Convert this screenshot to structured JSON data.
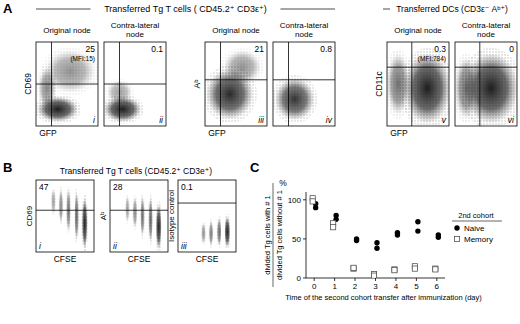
{
  "panel_a": {
    "label": "A",
    "header_tg": "Transferred Tg T cells ( CD45.2⁺ CD3ε⁺)",
    "header_dc": "Transferred DCs (CD3ε⁻ Aᵇ⁺)",
    "groups": [
      {
        "y_label": "CD69",
        "x_label": "GFP",
        "plots": [
          {
            "roman": "i",
            "column": "Original node",
            "percent": 25,
            "note": "(MFI:15)"
          },
          {
            "roman": "ii",
            "column": "Contra-lateral node",
            "percent": 0.1
          }
        ]
      },
      {
        "y_label": "Aᵇ",
        "x_label": "GFP",
        "plots": [
          {
            "roman": "iii",
            "column": "Original node",
            "percent": 21
          },
          {
            "roman": "iv",
            "column": "Contra-lateral node",
            "percent": 0.8
          }
        ]
      },
      {
        "y_label": "CD11c",
        "x_label": "GFP",
        "plots": [
          {
            "roman": "v",
            "column": "Original node",
            "percent": 0.3,
            "note": "(MFI:784)"
          },
          {
            "roman": "vi",
            "column": "Contra-lateral node",
            "percent": 0
          }
        ]
      }
    ]
  },
  "panel_b": {
    "label": "B",
    "header": "Transferred Tg T cells (CD45.2⁺ CD3e⁺)",
    "x_label": "CFSE",
    "plots": [
      {
        "roman": "i",
        "y_label": "CD69",
        "percent": 47
      },
      {
        "roman": "ii",
        "y_label": "Aᵇ",
        "percent": 28
      },
      {
        "roman": "iii",
        "y_label": "Isotype control",
        "percent": 0.1
      }
    ]
  },
  "panel_c": {
    "label": "C"
  },
  "chart_data": {
    "type": "scatter",
    "x_label": "Time of the second cohort transfer after immunization (day)",
    "y_label": "%",
    "y_label_lines": [
      "divided Tg cells with # 1",
      "divided Tg cells without # 1"
    ],
    "legend_title": "2nd cohort",
    "legend": "upper right",
    "x": [
      0,
      0,
      1,
      1,
      2,
      2,
      3,
      3,
      4,
      4,
      5,
      5,
      6,
      6
    ],
    "xlim": [
      -0.4,
      6.4
    ],
    "xticks": [
      0,
      1,
      2,
      3,
      4,
      5,
      6
    ],
    "ylim": [
      0,
      110
    ],
    "yticks": [
      0,
      50,
      100
    ],
    "series": [
      {
        "name": "Naive",
        "color": "#000000",
        "marker": "circle",
        "values": [
          95,
          90,
          80,
          75,
          50,
          48,
          45,
          38,
          55,
          58,
          72,
          60,
          55,
          52
        ]
      },
      {
        "name": "Memory",
        "color": "#555555",
        "marker": "open_square",
        "values": [
          102,
          98,
          70,
          65,
          12,
          13,
          5,
          3,
          11,
          10,
          15,
          12,
          12,
          11
        ]
      }
    ]
  }
}
